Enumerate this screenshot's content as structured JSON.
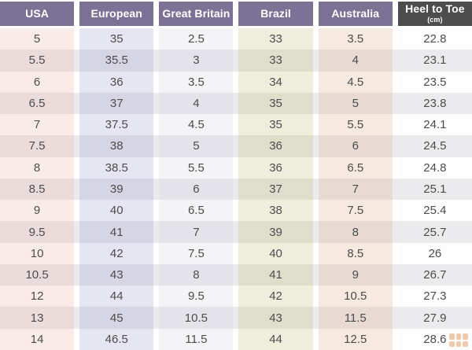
{
  "chart_data": {
    "type": "table",
    "columns": [
      {
        "key": "usa",
        "label": "USA",
        "header_bg": "#7c7296",
        "cell_light": "#f9ece8",
        "cell_dark": "#e9dcdb"
      },
      {
        "key": "european",
        "label": "European",
        "header_bg": "#7c7296",
        "cell_light": "#e6e5f2",
        "cell_dark": "#d6d5e4"
      },
      {
        "key": "great_britain",
        "label": "Great Britain",
        "header_bg": "#7c7296",
        "cell_light": "#f4f4f7",
        "cell_dark": "#e3e3e9"
      },
      {
        "key": "brazil",
        "label": "Brazil",
        "header_bg": "#7c7296",
        "cell_light": "#efeedd",
        "cell_dark": "#dfdecd"
      },
      {
        "key": "australia",
        "label": "Australia",
        "header_bg": "#7c7296",
        "cell_light": "#f6e9e0",
        "cell_dark": "#e6dad2"
      },
      {
        "key": "heel_to_toe",
        "label": "Heel to Toe",
        "sublabel": "(cm)",
        "header_bg": "#4d4d4d",
        "cell_light": "#fdfdfe",
        "cell_dark": "#ebebed"
      }
    ],
    "rows": [
      [
        "5",
        "35",
        "2.5",
        "33",
        "3.5",
        "22.8"
      ],
      [
        "5.5",
        "35.5",
        "3",
        "33",
        "4",
        "23.1"
      ],
      [
        "6",
        "36",
        "3.5",
        "34",
        "4.5",
        "23.5"
      ],
      [
        "6.5",
        "37",
        "4",
        "35",
        "5",
        "23.8"
      ],
      [
        "7",
        "37.5",
        "4.5",
        "35",
        "5.5",
        "24.1"
      ],
      [
        "7.5",
        "38",
        "5",
        "36",
        "6",
        "24.5"
      ],
      [
        "8",
        "38.5",
        "5.5",
        "36",
        "6.5",
        "24.8"
      ],
      [
        "8.5",
        "39",
        "6",
        "37",
        "7",
        "25.1"
      ],
      [
        "9",
        "40",
        "6.5",
        "38",
        "7.5",
        "25.4"
      ],
      [
        "9.5",
        "41",
        "7",
        "39",
        "8",
        "25.7"
      ],
      [
        "10",
        "42",
        "7.5",
        "40",
        "8.5",
        "26"
      ],
      [
        "10.5",
        "43",
        "8",
        "41",
        "9",
        "26.7"
      ],
      [
        "12",
        "44",
        "9.5",
        "42",
        "10.5",
        "27.3"
      ],
      [
        "13",
        "45",
        "10.5",
        "43",
        "11.5",
        "27.9"
      ],
      [
        "14",
        "46.5",
        "11.5",
        "44",
        "12.5",
        "28.6"
      ]
    ]
  },
  "palette": {
    "row_light_base": "#ffffff",
    "row_dark_base": "#eaeaec",
    "text_color": "#4c4c4c",
    "header_text_color": "#ffffff",
    "watermark_color": "#e0995e"
  },
  "watermark": {
    "name": "grid-logo-icon"
  }
}
